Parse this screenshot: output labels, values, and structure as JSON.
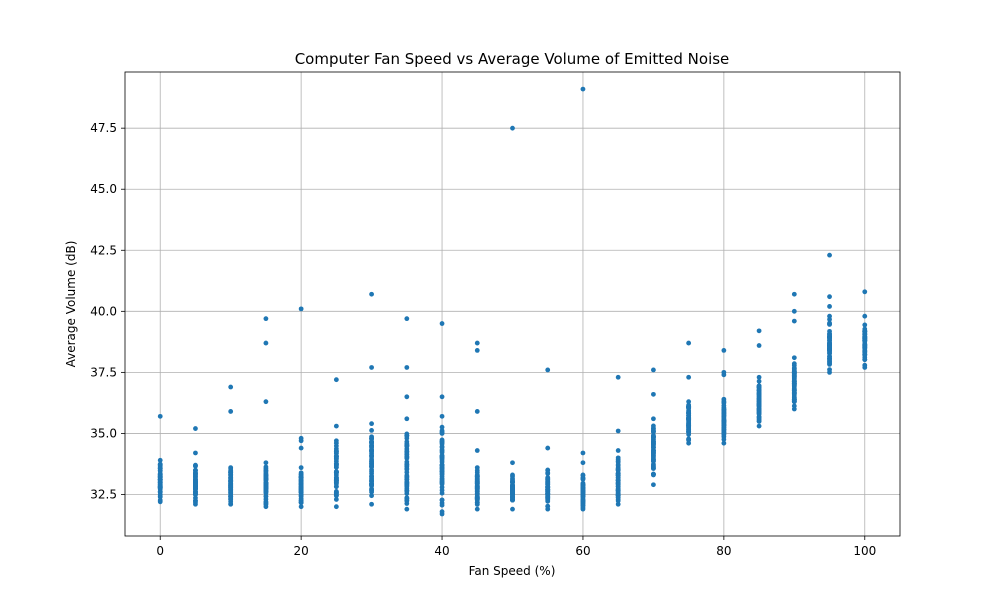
{
  "chart_data": {
    "type": "scatter",
    "title": "Computer Fan Speed vs Average Volume of Emitted Noise",
    "xlabel": "Fan Speed (%)",
    "ylabel": "Average Volume (dB)",
    "xlim": [
      -5,
      105
    ],
    "ylim": [
      30.8,
      49.8
    ],
    "xticks": [
      0,
      20,
      40,
      60,
      80,
      100
    ],
    "yticks": [
      32.5,
      35.0,
      37.5,
      40.0,
      42.5,
      45.0,
      47.5
    ],
    "xtick_labels": [
      "0",
      "20",
      "40",
      "60",
      "80",
      "100"
    ],
    "ytick_labels": [
      "32.5",
      "35.0",
      "37.5",
      "40.0",
      "42.5",
      "45.0",
      "47.5"
    ],
    "grid": true,
    "marker_color": "#1f77b4",
    "groups": [
      {
        "x": 0,
        "low": 32.2,
        "high": 33.9,
        "outliers": [
          35.7
        ]
      },
      {
        "x": 5,
        "low": 32.1,
        "high": 33.7,
        "outliers": [
          34.2,
          35.2
        ]
      },
      {
        "x": 10,
        "low": 32.1,
        "high": 33.6,
        "outliers": [
          35.9,
          36.9
        ]
      },
      {
        "x": 15,
        "low": 32.0,
        "high": 33.8,
        "outliers": [
          36.3,
          38.7,
          39.7
        ]
      },
      {
        "x": 20,
        "low": 32.0,
        "high": 33.6,
        "outliers": [
          34.4,
          34.7,
          34.8,
          40.1
        ]
      },
      {
        "x": 25,
        "low": 32.0,
        "high": 34.7,
        "outliers": [
          35.3,
          37.2
        ]
      },
      {
        "x": 30,
        "low": 32.1,
        "high": 35.4,
        "outliers": [
          37.7,
          40.7
        ]
      },
      {
        "x": 35,
        "low": 31.9,
        "high": 35.6,
        "outliers": [
          36.5,
          37.7,
          39.7
        ]
      },
      {
        "x": 40,
        "low": 31.7,
        "high": 35.7,
        "outliers": [
          36.5,
          39.5
        ]
      },
      {
        "x": 45,
        "low": 31.9,
        "high": 33.6,
        "outliers": [
          34.3,
          35.9,
          38.4,
          38.7
        ]
      },
      {
        "x": 50,
        "low": 31.9,
        "high": 33.3,
        "outliers": [
          33.8,
          47.5
        ]
      },
      {
        "x": 55,
        "low": 31.9,
        "high": 33.5,
        "outliers": [
          34.4,
          37.6
        ]
      },
      {
        "x": 60,
        "low": 31.9,
        "high": 33.3,
        "outliers": [
          33.8,
          34.2,
          49.1
        ]
      },
      {
        "x": 65,
        "low": 32.1,
        "high": 34.0,
        "outliers": [
          34.3,
          35.1,
          37.3
        ]
      },
      {
        "x": 70,
        "low": 32.9,
        "high": 35.6,
        "outliers": [
          36.6,
          37.6
        ]
      },
      {
        "x": 75,
        "low": 34.6,
        "high": 36.3,
        "outliers": [
          37.3,
          38.7
        ]
      },
      {
        "x": 80,
        "low": 34.6,
        "high": 36.4,
        "outliers": [
          37.4,
          37.5,
          38.4
        ]
      },
      {
        "x": 85,
        "low": 35.3,
        "high": 37.3,
        "outliers": [
          38.6,
          39.2
        ]
      },
      {
        "x": 90,
        "low": 36.0,
        "high": 38.1,
        "outliers": [
          39.6,
          40.0,
          40.7
        ]
      },
      {
        "x": 95,
        "low": 37.5,
        "high": 39.8,
        "outliers": [
          40.2,
          40.6,
          42.3
        ]
      },
      {
        "x": 100,
        "low": 37.7,
        "high": 39.8,
        "outliers": [
          40.8
        ]
      }
    ]
  }
}
